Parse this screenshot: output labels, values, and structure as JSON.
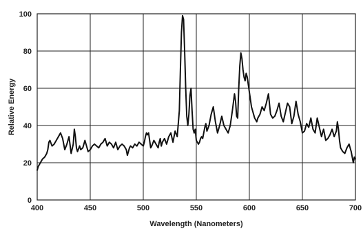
{
  "chart_data": {
    "type": "line",
    "xlabel": "Wavelength (Nanometers)",
    "ylabel": "Relative Energy",
    "xlim": [
      400,
      700
    ],
    "ylim": [
      0,
      100
    ],
    "x_ticks": [
      "400",
      "450",
      "500",
      "550",
      "600",
      "650",
      "700"
    ],
    "y_ticks": [
      "0",
      "20",
      "40",
      "60",
      "80",
      "100"
    ],
    "grid": true,
    "series": [
      {
        "x": [
          400,
          401,
          402,
          403,
          405,
          407,
          408,
          409,
          410,
          411,
          412,
          414,
          416,
          418,
          420,
          422,
          424,
          426,
          428,
          430,
          432,
          434,
          435,
          436,
          437,
          438,
          440,
          441,
          443,
          445,
          447,
          448,
          450,
          452,
          454,
          456,
          458,
          460,
          462,
          464,
          466,
          468,
          470,
          472,
          474,
          476,
          478,
          480,
          482,
          484,
          485,
          486,
          487,
          488,
          490,
          492,
          494,
          496,
          498,
          500,
          501,
          502,
          503,
          504,
          505,
          506,
          507,
          508,
          510,
          512,
          514,
          515,
          516,
          517,
          518,
          520,
          522,
          524,
          526,
          528,
          530,
          532,
          534,
          535,
          536,
          537,
          538,
          539,
          540,
          541,
          542,
          543,
          544,
          545,
          546,
          547,
          548,
          549,
          550,
          551,
          552,
          553,
          554,
          555,
          556,
          557,
          558,
          559,
          560,
          562,
          564,
          566,
          568,
          570,
          572,
          574,
          576,
          578,
          580,
          582,
          584,
          586,
          587,
          588,
          589,
          590,
          591,
          592,
          593,
          594,
          595,
          596,
          597,
          598,
          599,
          600,
          601,
          602,
          603,
          604,
          605,
          606,
          607,
          608,
          610,
          612,
          614,
          616,
          618,
          620,
          622,
          624,
          626,
          628,
          630,
          632,
          634,
          636,
          638,
          640,
          642,
          644,
          646,
          648,
          650,
          652,
          654,
          656,
          658,
          660,
          662,
          664,
          666,
          668,
          670,
          672,
          674,
          676,
          678,
          680,
          682,
          683,
          684,
          685,
          686,
          688,
          690,
          692,
          694,
          696,
          698,
          699,
          700
        ],
        "values": [
          16,
          18,
          19,
          20,
          22,
          23,
          24,
          25,
          27,
          31,
          32,
          29,
          30,
          32,
          34,
          36,
          33,
          27,
          30,
          34,
          25,
          30,
          38,
          34,
          28,
          26,
          29,
          27,
          28,
          32,
          28,
          26,
          27,
          29,
          30,
          29,
          28,
          30,
          31,
          33,
          29,
          31,
          30,
          28,
          31,
          27,
          29,
          30,
          29,
          27,
          24,
          26,
          28,
          29,
          28,
          30,
          29,
          31,
          30,
          29,
          31,
          34,
          36,
          35,
          36,
          32,
          28,
          29,
          32,
          30,
          28,
          31,
          33,
          29,
          31,
          33,
          30,
          34,
          36,
          31,
          37,
          34,
          48,
          70,
          90,
          99,
          97,
          80,
          60,
          45,
          40,
          46,
          56,
          60,
          48,
          38,
          36,
          38,
          32,
          31,
          30,
          31,
          33,
          34,
          33,
          36,
          39,
          41,
          37,
          40,
          46,
          50,
          42,
          36,
          40,
          45,
          40,
          38,
          36,
          40,
          48,
          57,
          53,
          45,
          44,
          60,
          72,
          79,
          76,
          70,
          66,
          64,
          68,
          66,
          62,
          58,
          54,
          50,
          48,
          46,
          44,
          43,
          42,
          44,
          46,
          50,
          48,
          52,
          57,
          46,
          44,
          45,
          48,
          52,
          45,
          42,
          47,
          52,
          50,
          41,
          45,
          53,
          46,
          42,
          36,
          37,
          41,
          39,
          44,
          38,
          36,
          44,
          39,
          34,
          38,
          32,
          33,
          35,
          38,
          34,
          37,
          42,
          38,
          32,
          28,
          26,
          25,
          28,
          30,
          26,
          20,
          23,
          22
        ]
      }
    ]
  }
}
